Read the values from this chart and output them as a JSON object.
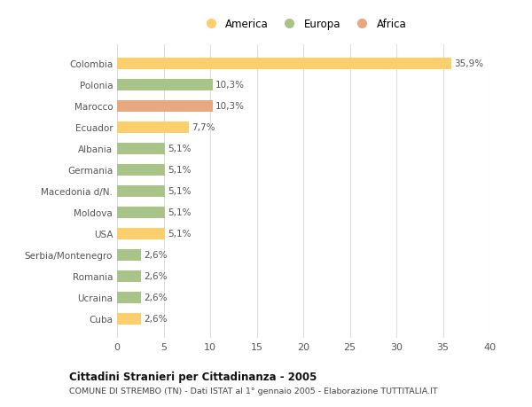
{
  "categories": [
    "Colombia",
    "Polonia",
    "Marocco",
    "Ecuador",
    "Albania",
    "Germania",
    "Macedonia d/N.",
    "Moldova",
    "USA",
    "Serbia/Montenegro",
    "Romania",
    "Ucraina",
    "Cuba"
  ],
  "values": [
    35.9,
    10.3,
    10.3,
    7.7,
    5.1,
    5.1,
    5.1,
    5.1,
    5.1,
    2.6,
    2.6,
    2.6,
    2.6
  ],
  "labels": [
    "35,9%",
    "10,3%",
    "10,3%",
    "7,7%",
    "5,1%",
    "5,1%",
    "5,1%",
    "5,1%",
    "5,1%",
    "2,6%",
    "2,6%",
    "2,6%",
    "2,6%"
  ],
  "colors": [
    "#FBCE6E",
    "#A8C488",
    "#E8A882",
    "#FBCE6E",
    "#A8C488",
    "#A8C488",
    "#A8C488",
    "#A8C488",
    "#FBCE6E",
    "#A8C488",
    "#A8C488",
    "#A8C488",
    "#FBCE6E"
  ],
  "legend_labels": [
    "America",
    "Europa",
    "Africa"
  ],
  "legend_colors": [
    "#FBCE6E",
    "#A8C488",
    "#E8A882"
  ],
  "xlim": [
    0,
    40
  ],
  "xticks": [
    0,
    5,
    10,
    15,
    20,
    25,
    30,
    35,
    40
  ],
  "title": "Cittadini Stranieri per Cittadinanza - 2005",
  "subtitle": "COMUNE DI STREMBO (TN) - Dati ISTAT al 1° gennaio 2005 - Elaborazione TUTTITALIA.IT",
  "background_color": "#FFFFFF",
  "grid_color": "#DDDDDD",
  "bar_height": 0.55
}
